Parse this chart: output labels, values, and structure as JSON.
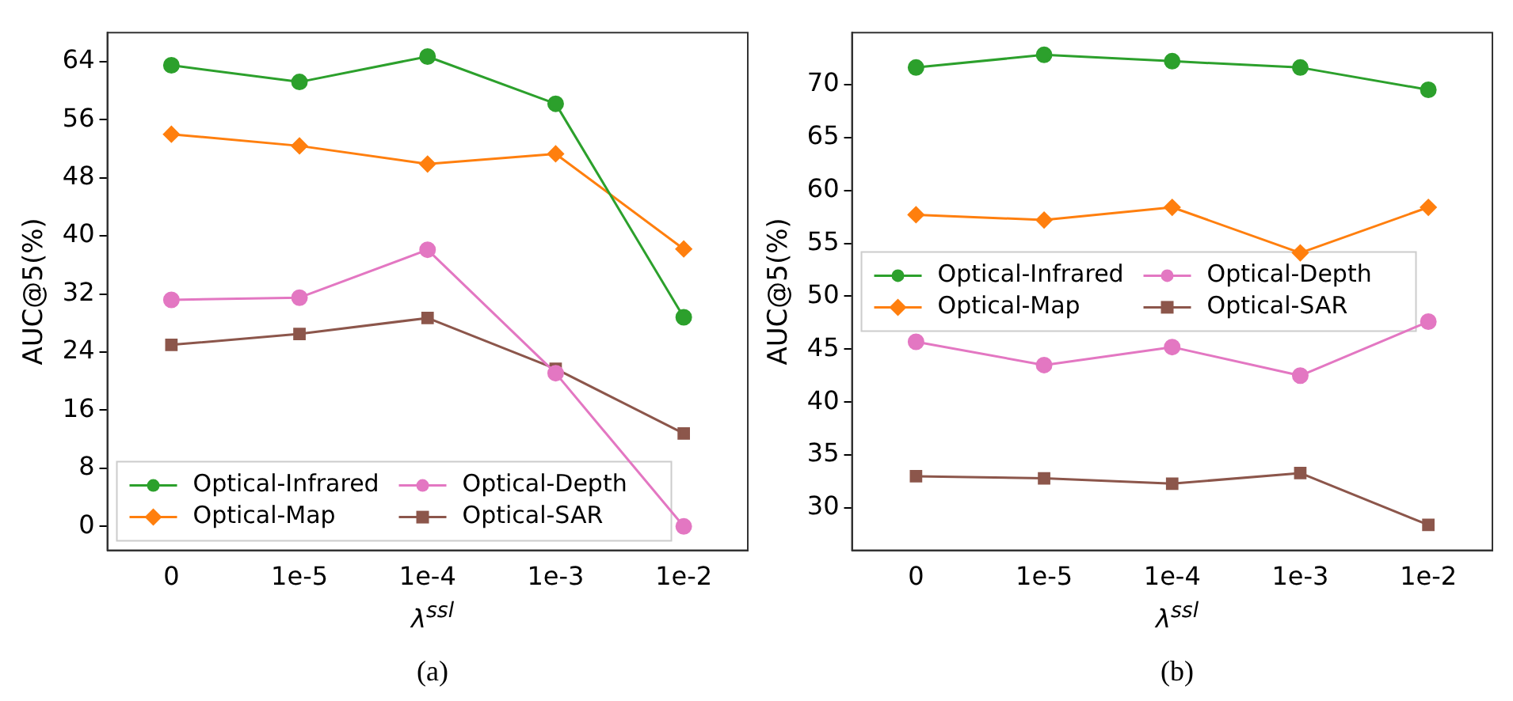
{
  "chart_data": [
    {
      "type": "line",
      "categories": [
        "0",
        "1e-5",
        "1e-4",
        "1e-3",
        "1e-2"
      ],
      "xlabel": "λ$^{ssl}$",
      "ylabel": "AUC@5(%)",
      "ylim": [
        -3.3,
        68
      ],
      "yticks": [
        0,
        8,
        16,
        24,
        32,
        40,
        48,
        56,
        64
      ],
      "grid": false,
      "legend": "bottom left",
      "annotations": [
        "(a)"
      ],
      "series": [
        {
          "name": "Optical-Infrared",
          "color": "#2ca02c",
          "marker": "circle",
          "values": [
            63.5,
            61.2,
            64.7,
            58.2,
            28.8
          ]
        },
        {
          "name": "Optical-Map",
          "color": "#ff7f0e",
          "marker": "diamond",
          "values": [
            54.0,
            52.4,
            49.9,
            51.3,
            38.2
          ]
        },
        {
          "name": "Optical-Depth",
          "color": "#e377c2",
          "marker": "circle",
          "values": [
            31.2,
            31.5,
            38.1,
            21.1,
            0
          ]
        },
        {
          "name": "Optical-SAR",
          "color": "#8c564b",
          "marker": "square",
          "values": [
            25.0,
            26.5,
            28.7,
            21.7,
            12.8
          ]
        }
      ]
    },
    {
      "type": "line",
      "categories": [
        "0",
        "1e-5",
        "1e-4",
        "1e-3",
        "1e-2"
      ],
      "xlabel": "λ$^{ssl}$",
      "ylabel": "AUC@5(%)",
      "ylim": [
        26,
        74.9
      ],
      "yticks": [
        30,
        35,
        40,
        45,
        50,
        55,
        60,
        65,
        70
      ],
      "grid": false,
      "legend": "left",
      "annotations": [
        "(b)"
      ],
      "series": [
        {
          "name": "Optical-Infrared",
          "color": "#2ca02c",
          "marker": "circle",
          "values": [
            71.6,
            72.8,
            72.2,
            71.6,
            69.5
          ]
        },
        {
          "name": "Optical-Map",
          "color": "#ff7f0e",
          "marker": "diamond",
          "values": [
            57.7,
            57.2,
            58.4,
            54.1,
            58.4
          ]
        },
        {
          "name": "Optical-Depth",
          "color": "#e377c2",
          "marker": "circle",
          "values": [
            45.7,
            43.5,
            45.2,
            42.5,
            47.6
          ]
        },
        {
          "name": "Optical-SAR",
          "color": "#8c564b",
          "marker": "square",
          "values": [
            33.0,
            32.8,
            32.3,
            33.3,
            28.4
          ]
        }
      ]
    }
  ]
}
